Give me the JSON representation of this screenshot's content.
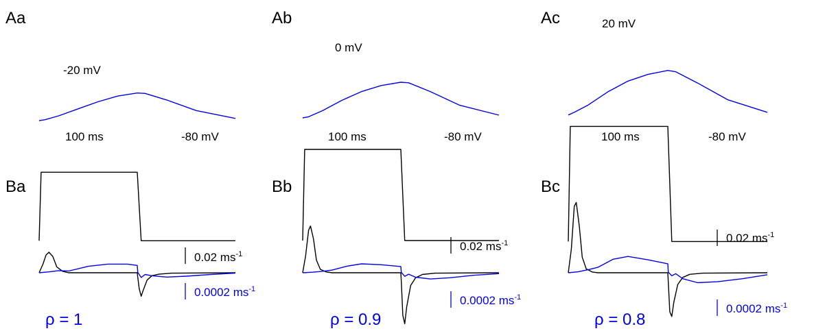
{
  "chart_data": [
    {
      "panel": "Aa",
      "type": "line",
      "step_label": "-20 mV",
      "duration_label": "100 ms",
      "holding_label": "-80 mV",
      "series": [
        {
          "color": "#000000",
          "x": [
            0,
            2,
            100,
            104,
            200
          ],
          "y": [
            -80,
            -20,
            -20,
            -80,
            -80
          ]
        },
        {
          "color": "#0000e6",
          "x": [
            0,
            6,
            20,
            40,
            60,
            80,
            100,
            108,
            130,
            160,
            200
          ],
          "y": [
            0.25,
            0.27,
            0.36,
            0.52,
            0.68,
            0.81,
            0.88,
            0.87,
            0.72,
            0.48,
            0.3
          ]
        }
      ]
    },
    {
      "panel": "Ab",
      "type": "line",
      "step_label": "0 mV",
      "duration_label": "100 ms",
      "holding_label": "-80 mV",
      "series": [
        {
          "color": "#000000",
          "x": [
            0,
            2,
            100,
            104,
            200
          ],
          "y": [
            -80,
            0,
            0,
            -80,
            -80
          ]
        },
        {
          "color": "#0000e6",
          "x": [
            0,
            6,
            20,
            40,
            60,
            80,
            100,
            108,
            130,
            160,
            200
          ],
          "y": [
            0.25,
            0.27,
            0.38,
            0.57,
            0.73,
            0.84,
            0.9,
            0.89,
            0.73,
            0.48,
            0.3
          ]
        }
      ]
    },
    {
      "panel": "Ac",
      "type": "line",
      "step_label": "20 mV",
      "duration_label": "100 ms",
      "holding_label": "-80 mV",
      "series": [
        {
          "color": "#000000",
          "x": [
            0,
            2,
            100,
            104,
            200
          ],
          "y": [
            -80,
            20,
            20,
            -80,
            -80
          ]
        },
        {
          "color": "#0000e6",
          "x": [
            0,
            6,
            20,
            40,
            60,
            80,
            100,
            108,
            130,
            160,
            200
          ],
          "y": [
            0.25,
            0.29,
            0.4,
            0.6,
            0.76,
            0.86,
            0.92,
            0.9,
            0.73,
            0.48,
            0.29
          ]
        }
      ]
    },
    {
      "panel": "Ba",
      "type": "line",
      "scale_black": "0.02 ms",
      "scale_blue": "0.0002 ms",
      "scale_unit_exp": "-1",
      "rho": "ρ = 1",
      "series": [
        {
          "color": "#000000",
          "x": [
            0,
            4,
            7,
            10,
            14,
            18,
            24,
            30,
            60,
            100,
            100.5,
            102,
            104,
            106,
            110,
            115,
            122,
            135,
            200
          ],
          "y": [
            0,
            0.006,
            0.012,
            0.014,
            0.011,
            0.004,
            0.001,
            0,
            0,
            0,
            -0.003,
            -0.011,
            -0.016,
            -0.012,
            -0.005,
            -0.002,
            -0.001,
            -0.0003,
            0
          ]
        },
        {
          "color": "#0000e6",
          "x": [
            0,
            10,
            20,
            30,
            50,
            70,
            90,
            100,
            100.5,
            104,
            108,
            115,
            130,
            150,
            175,
            200
          ],
          "y": [
            0,
            2e-05,
            5e-05,
            4e-05,
            0.00015,
            0.0002,
            0.0002,
            0.00017,
            1e-05,
            -0.00011,
            -4e-05,
            -7e-05,
            -0.0001,
            -8e-05,
            -4e-05,
            -1e-05
          ]
        }
      ]
    },
    {
      "panel": "Bb",
      "type": "line",
      "scale_black": "0.02 ms",
      "scale_blue": "0.0002 ms",
      "scale_unit_exp": "-1",
      "rho": "ρ = 0.9",
      "series": [
        {
          "color": "#000000",
          "x": [
            0,
            3,
            6,
            8,
            11,
            14,
            18,
            24,
            30,
            60,
            100,
            100.5,
            102,
            104,
            106,
            110,
            115,
            122,
            135,
            200
          ],
          "y": [
            0,
            0.02,
            0.05,
            0.055,
            0.04,
            0.015,
            0.004,
            0.001,
            0,
            0,
            0,
            -0.01,
            -0.05,
            -0.06,
            -0.04,
            -0.015,
            -0.006,
            -0.002,
            -0.0005,
            0
          ]
        },
        {
          "color": "#0000e6",
          "x": [
            0,
            10,
            20,
            30,
            45,
            60,
            80,
            100,
            100.5,
            104,
            108,
            115,
            130,
            150,
            175,
            200
          ],
          "y": [
            0,
            3e-05,
            8e-05,
            0.00015,
            0.00037,
            0.0005,
            0.00045,
            0.00035,
            2e-05,
            -0.0002,
            -8e-05,
            -0.00025,
            -0.00035,
            -0.00028,
            -0.00014,
            -5e-05
          ]
        }
      ]
    },
    {
      "panel": "Bc",
      "type": "line",
      "scale_black": "0.02 ms",
      "scale_blue": "0.0002 ms",
      "scale_unit_exp": "-1",
      "rho": "ρ = 0.8",
      "series": [
        {
          "color": "#000000",
          "x": [
            0,
            3,
            6,
            8,
            11,
            14,
            18,
            24,
            30,
            60,
            100,
            100.5,
            102,
            104,
            106,
            110,
            115,
            122,
            135,
            200
          ],
          "y": [
            0,
            0.03,
            0.085,
            0.09,
            0.06,
            0.02,
            0.005,
            0.001,
            0,
            0,
            0,
            -0.012,
            -0.05,
            -0.056,
            -0.038,
            -0.015,
            -0.006,
            -0.002,
            -0.0005,
            0
          ]
        },
        {
          "color": "#0000e6",
          "x": [
            0,
            10,
            20,
            30,
            45,
            60,
            80,
            100,
            100.5,
            104,
            108,
            115,
            130,
            150,
            175,
            200
          ],
          "y": [
            0,
            5e-05,
            0.00015,
            0.00028,
            0.00068,
            0.00082,
            0.00065,
            0.00045,
            3e-05,
            -0.00015,
            -5e-05,
            -0.0003,
            -0.0005,
            -0.00045,
            -0.0003,
            -0.0001
          ]
        }
      ]
    }
  ]
}
